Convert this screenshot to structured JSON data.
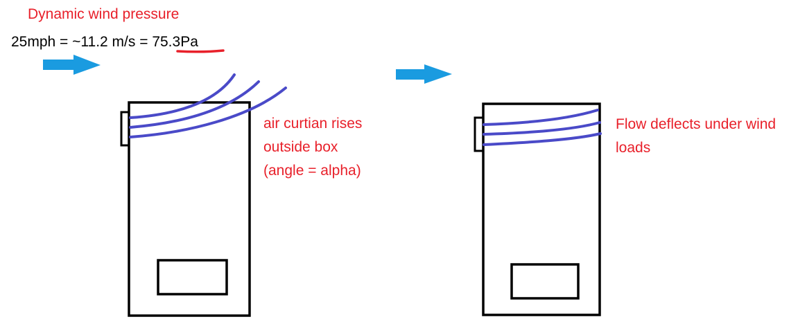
{
  "header": {
    "title": "Dynamic wind pressure",
    "formula_prefix": "25mph = ~11.2 m/s = ",
    "formula_result": "75.3Pa"
  },
  "annotations": {
    "left_label_line1": "air curtian rises",
    "left_label_line2": "outside box",
    "left_label_line3": "(angle = alpha)",
    "right_label": "Flow deflects under wind loads"
  },
  "colors": {
    "annotation_text": "#e8202a",
    "underline": "#e8202a",
    "wind_arrow": "#1a9be0",
    "air_flow_lines": "#4a4ac8",
    "outline": "#000000"
  },
  "icons": {
    "wind_arrow": "arrow-right-icon"
  }
}
